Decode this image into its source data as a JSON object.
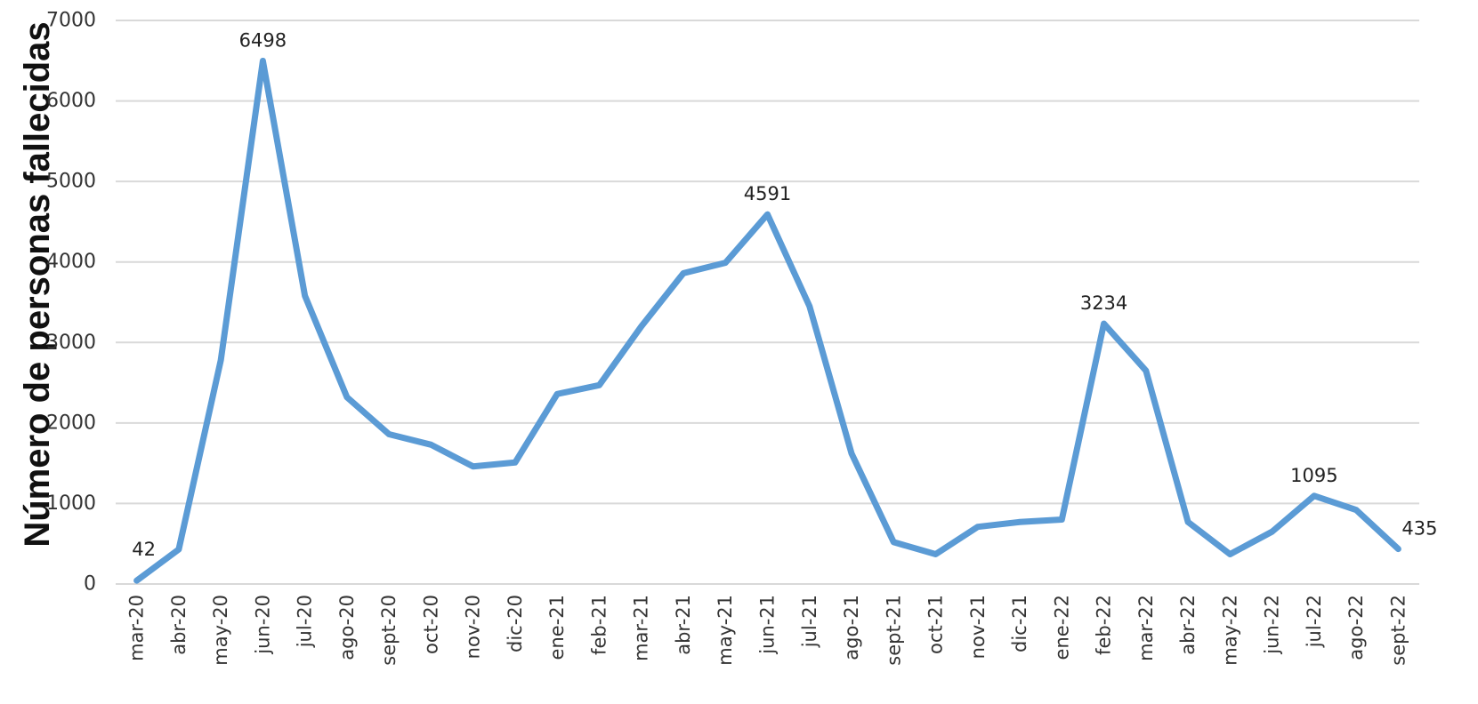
{
  "chart_data": {
    "type": "line",
    "ylabel": "Número de personas fallecidas",
    "xlabel": "",
    "title": "",
    "ylim": [
      0,
      7000
    ],
    "yticks": [
      0,
      1000,
      2000,
      3000,
      4000,
      5000,
      6000,
      7000
    ],
    "grid": true,
    "legend": "none",
    "categories": [
      "mar-20",
      "abr-20",
      "may-20",
      "jun-20",
      "jul-20",
      "ago-20",
      "sept-20",
      "oct-20",
      "nov-20",
      "dic-20",
      "ene-21",
      "feb-21",
      "mar-21",
      "abr-21",
      "may-21",
      "jun-21",
      "jul-21",
      "ago-21",
      "sept-21",
      "oct-21",
      "nov-21",
      "dic-21",
      "ene-22",
      "feb-22",
      "mar-22",
      "abr-22",
      "may-22",
      "jun-22",
      "jul-22",
      "ago-22",
      "sept-22"
    ],
    "series": [
      {
        "values": [
          42,
          430,
          2780,
          6498,
          3580,
          2320,
          1860,
          1730,
          1460,
          1510,
          2360,
          2470,
          3200,
          3860,
          3990,
          4591,
          3450,
          1620,
          520,
          370,
          710,
          770,
          800,
          3234,
          2650,
          770,
          370,
          650,
          1095,
          920,
          435
        ]
      }
    ],
    "data_labels": [
      {
        "index": 0,
        "text": "42"
      },
      {
        "index": 3,
        "text": "6498"
      },
      {
        "index": 15,
        "text": "4591"
      },
      {
        "index": 23,
        "text": "3234"
      },
      {
        "index": 28,
        "text": "1095"
      },
      {
        "index": 30,
        "text": "435"
      }
    ],
    "colors": {
      "line": "#5b9bd5"
    }
  }
}
